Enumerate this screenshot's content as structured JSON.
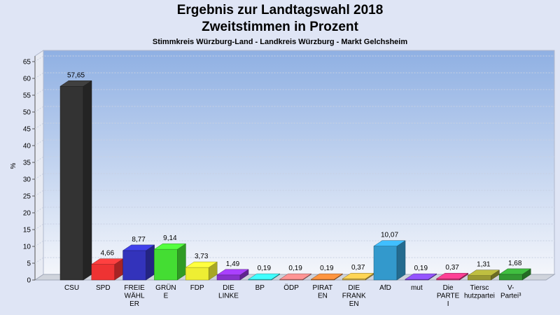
{
  "chart_data": {
    "type": "bar",
    "title": "Ergebnis zur Landtagswahl 2018",
    "subtitle": "Zweitstimmen in Prozent",
    "caption": "Stimmkreis Würzburg-Land - Landkreis Würzburg - Markt Gelchsheim",
    "ylabel": "%",
    "ylim": [
      0,
      65
    ],
    "yticks": [
      0,
      5,
      10,
      15,
      20,
      25,
      30,
      35,
      40,
      45,
      50,
      55,
      60,
      65
    ],
    "grid": true,
    "categories": [
      [
        "CSU"
      ],
      [
        "SPD"
      ],
      [
        "FREIE",
        "WÄHL",
        "ER"
      ],
      [
        "GRÜN",
        "E"
      ],
      [
        "FDP"
      ],
      [
        "DIE",
        "LINKE"
      ],
      [
        "BP"
      ],
      [
        "ÖDP"
      ],
      [
        "PIRAT",
        "EN"
      ],
      [
        "DIE",
        "FRANK",
        "EN"
      ],
      [
        "AfD"
      ],
      [
        "mut"
      ],
      [
        "Die",
        "PARTE",
        "I"
      ],
      [
        "Tiersc",
        "hutzpartei"
      ],
      [
        "V-",
        "Partei³"
      ]
    ],
    "values": [
      57.65,
      4.66,
      8.77,
      9.14,
      3.73,
      1.49,
      0.19,
      0.19,
      0.19,
      0.37,
      10.07,
      0.19,
      0.37,
      1.31,
      1.68
    ],
    "value_labels": [
      "57,65",
      "4,66",
      "8,77",
      "9,14",
      "3,73",
      "1,49",
      "0,19",
      "0,19",
      "0,19",
      "0,37",
      "10,07",
      "0,19",
      "0,37",
      "1,31",
      "1,68"
    ],
    "colors": [
      "#333333",
      "#ee3333",
      "#3333bb",
      "#44dd33",
      "#eeee33",
      "#8833cc",
      "#33cccc",
      "#cc7777",
      "#cc7733",
      "#ccaa44",
      "#3399cc",
      "#7744cc",
      "#cc3377",
      "#999933",
      "#339933"
    ]
  }
}
